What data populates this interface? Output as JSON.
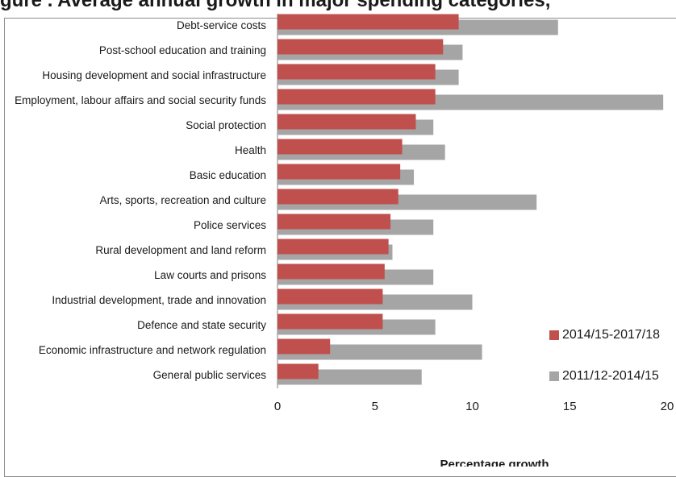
{
  "chart_data": {
    "type": "bar",
    "orientation": "horizontal",
    "categories": [
      "Debt-service costs",
      "Post-school education and training",
      "Housing development and social infrastructure",
      "Employment, labour affairs and social security funds",
      "Social protection",
      "Health",
      "Basic education",
      "Arts, sports, recreation and culture",
      "Police services",
      "Rural development and land reform",
      "Law courts and prisons",
      "Industrial development, trade and innovation",
      "Defence and state security",
      "Economic infrastructure and network regulation",
      "General public services"
    ],
    "series": [
      {
        "name": "2014/15-2017/18",
        "color": "#c0504d",
        "values": [
          9.3,
          8.5,
          8.1,
          8.1,
          7.1,
          6.4,
          6.3,
          6.2,
          5.8,
          5.7,
          5.5,
          5.4,
          5.4,
          2.7,
          2.1
        ]
      },
      {
        "name": "2011/12-2014/15",
        "color": "#a5a5a5",
        "values": [
          14.4,
          9.5,
          9.3,
          19.8,
          8.0,
          8.6,
          7.0,
          13.3,
          8.0,
          5.9,
          8.0,
          10.0,
          8.1,
          10.5,
          7.4
        ]
      }
    ],
    "xlim": [
      0,
      20
    ],
    "xticks": [
      "0",
      "5",
      "10",
      "15",
      "20"
    ],
    "xlabel": "Percentage growth",
    "title_fragment": "g",
    "title_rest": "ure  .  Average   annual   growth   in   major   spending   categories,",
    "legend_position": "right",
    "grid": false
  }
}
